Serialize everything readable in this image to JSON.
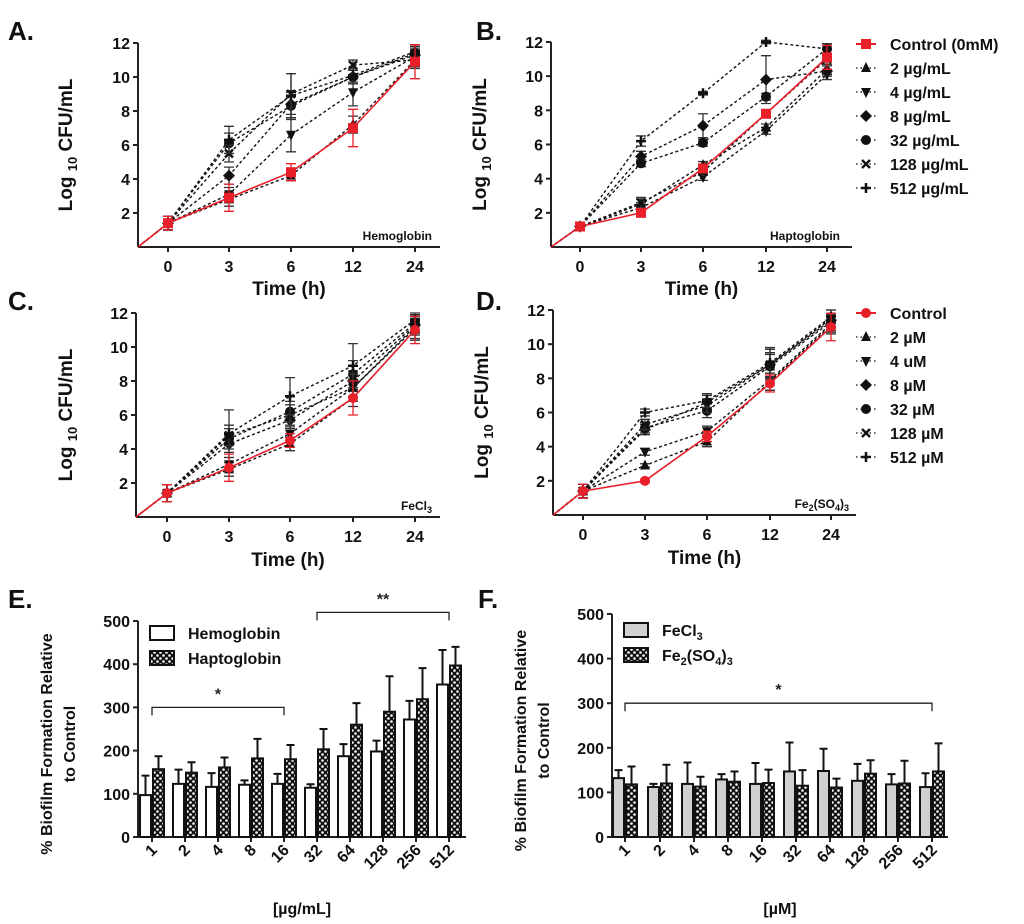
{
  "figure": {
    "panel_labels": [
      "A.",
      "B.",
      "C.",
      "D.",
      "E.",
      "F."
    ]
  },
  "chart_data": [
    {
      "id": "A",
      "type": "line",
      "annotation": "Hemoglobin",
      "xlabel": "Time  (h)",
      "ylabel_prefix": "Log",
      "ylabel_sub": "10",
      "ylabel_suffix": "CFU/mL",
      "x": [
        "0",
        "3",
        "6",
        "12",
        "24"
      ],
      "ylim": [
        0,
        12
      ],
      "yticks": [
        2,
        4,
        6,
        8,
        10,
        12
      ],
      "grid": false,
      "series": [
        {
          "name": "Control (0mM)",
          "marker": "square",
          "color": "#e8202a",
          "style": "solid",
          "values": [
            1.4,
            2.9,
            4.4,
            7.0,
            10.9
          ],
          "err": [
            0.4,
            0.8,
            0.5,
            1.1,
            1.0
          ]
        },
        {
          "name": "2 µg/mL",
          "marker": "triangle-up",
          "color": "#111111",
          "style": "dashed",
          "values": [
            1.4,
            2.8,
            4.2,
            7.2,
            11.0
          ],
          "err": [
            0.4,
            0.4,
            0.3,
            0.5,
            0.4
          ]
        },
        {
          "name": "4 µg/mL",
          "marker": "triangle-down",
          "color": "#111111",
          "style": "dashed",
          "values": [
            1.4,
            3.1,
            6.6,
            9.1,
            11.2
          ],
          "err": [
            0.4,
            0.4,
            1.0,
            0.8,
            0.4
          ]
        },
        {
          "name": "8 µg/mL",
          "marker": "diamond",
          "color": "#111111",
          "style": "dashed",
          "values": [
            1.4,
            4.2,
            8.4,
            10.0,
            11.3
          ],
          "err": [
            0.4,
            0.5,
            0.8,
            0.4,
            0.4
          ]
        },
        {
          "name": "32 µg/mL",
          "marker": "circle",
          "color": "#111111",
          "style": "dashed",
          "values": [
            1.4,
            6.1,
            8.3,
            10.0,
            11.4
          ],
          "err": [
            0.4,
            0.6,
            0.8,
            0.4,
            0.4
          ]
        },
        {
          "name": "128 µg/mL",
          "marker": "x",
          "color": "#111111",
          "style": "dashed",
          "values": [
            1.4,
            5.5,
            9.0,
            10.7,
            11.0
          ],
          "err": [
            0.4,
            0.5,
            1.2,
            0.3,
            0.5
          ]
        },
        {
          "name": "512 µg/mL",
          "marker": "plus",
          "color": "#111111",
          "style": "dashed",
          "values": [
            1.4,
            6.3,
            8.9,
            10.1,
            11.5
          ],
          "err": [
            0.4,
            0.8,
            1.3,
            0.4,
            0.4
          ]
        }
      ]
    },
    {
      "id": "B",
      "type": "line",
      "annotation": "Haptoglobin",
      "xlabel": "Time  (h)",
      "ylabel_prefix": "Log",
      "ylabel_sub": "10",
      "ylabel_suffix": "CFU/mL",
      "x": [
        "0",
        "3",
        "6",
        "12",
        "24"
      ],
      "ylim": [
        0,
        12
      ],
      "yticks": [
        2,
        4,
        6,
        8,
        10,
        12
      ],
      "grid": false,
      "legend": {
        "position": "right",
        "entries": [
          "Control (0mM)",
          "2 µg/mL",
          "4 µg/mL",
          "8 µg/mL",
          "32 µg/mL",
          "128 µg/mL",
          "512 µg/mL"
        ]
      },
      "series": [
        {
          "name": "Control (0mM)",
          "marker": "square",
          "color": "#e8202a",
          "style": "solid",
          "values": [
            1.2,
            2.0,
            4.6,
            7.8,
            11.1
          ],
          "err": [
            0.1,
            0.1,
            0.2,
            0.2,
            0.7
          ]
        },
        {
          "name": "2 µg/mL",
          "marker": "triangle-up",
          "color": "#111111",
          "style": "dashed",
          "values": [
            1.2,
            2.5,
            4.8,
            7.0,
            10.4
          ],
          "err": [
            0.1,
            0.3,
            0.2,
            0.2,
            0.3
          ]
        },
        {
          "name": "4 µg/mL",
          "marker": "triangle-down",
          "color": "#111111",
          "style": "dashed",
          "values": [
            1.2,
            2.3,
            4.1,
            6.8,
            10.1
          ],
          "err": [
            0.1,
            0.3,
            0.2,
            0.2,
            0.3
          ]
        },
        {
          "name": "8 µg/mL",
          "marker": "diamond",
          "color": "#111111",
          "style": "dashed",
          "values": [
            1.2,
            5.3,
            7.1,
            9.8,
            10.3
          ],
          "err": [
            0.1,
            0.3,
            0.7,
            1.4,
            0.3
          ]
        },
        {
          "name": "32 µg/mL",
          "marker": "circle",
          "color": "#111111",
          "style": "dashed",
          "values": [
            1.2,
            4.9,
            6.1,
            8.8,
            11.6
          ],
          "err": [
            0.1,
            0.2,
            0.2,
            0.2,
            0.3
          ]
        },
        {
          "name": "128 µg/mL",
          "marker": "x",
          "color": "#111111",
          "style": "dashed",
          "values": [
            1.2,
            2.6,
            4.4,
            7.8,
            11.0
          ],
          "err": [
            0.1,
            0.3,
            0.2,
            0.2,
            0.3
          ]
        },
        {
          "name": "512 µg/mL",
          "marker": "plus",
          "color": "#111111",
          "style": "dashed",
          "values": [
            1.2,
            6.2,
            9.0,
            12.0,
            11.6
          ],
          "err": [
            0.1,
            0.3,
            0.1,
            0.1,
            0.3
          ]
        }
      ]
    },
    {
      "id": "C",
      "type": "line",
      "annotation": "FeCl",
      "annotation_sub": "3",
      "xlabel": "Time  (h)",
      "ylabel_prefix": "Log",
      "ylabel_sub": "10",
      "ylabel_suffix": "CFU/mL",
      "x": [
        "0",
        "3",
        "6",
        "12",
        "24"
      ],
      "ylim": [
        0,
        12
      ],
      "yticks": [
        2,
        4,
        6,
        8,
        10,
        12
      ],
      "grid": false,
      "series": [
        {
          "name": "Control",
          "marker": "circle",
          "color": "#e8202a",
          "style": "solid",
          "values": [
            1.4,
            2.9,
            4.5,
            7.0,
            11.0
          ],
          "err": [
            0.5,
            0.8,
            0.4,
            1.0,
            0.8
          ]
        },
        {
          "name": "2 µM",
          "marker": "triangle-up",
          "color": "#111111",
          "style": "dashed",
          "values": [
            1.4,
            2.8,
            4.3,
            7.0,
            11.0
          ],
          "err": [
            0.5,
            0.4,
            0.4,
            0.5,
            0.5
          ]
        },
        {
          "name": "4 uM",
          "marker": "triangle-down",
          "color": "#111111",
          "style": "dashed",
          "values": [
            1.4,
            3.1,
            4.9,
            7.6,
            11.2
          ],
          "err": [
            0.5,
            0.4,
            0.4,
            0.5,
            0.5
          ]
        },
        {
          "name": "8 µM",
          "marker": "diamond",
          "color": "#111111",
          "style": "dashed",
          "values": [
            1.4,
            4.3,
            5.7,
            8.0,
            11.3
          ],
          "err": [
            0.5,
            0.5,
            0.5,
            0.6,
            0.5
          ]
        },
        {
          "name": "32 µM",
          "marker": "circle",
          "color": "#111111",
          "style": "dashed",
          "values": [
            1.4,
            4.6,
            6.2,
            8.4,
            11.4
          ],
          "err": [
            0.5,
            0.6,
            0.6,
            0.8,
            0.5
          ]
        },
        {
          "name": "128 µM",
          "marker": "x",
          "color": "#111111",
          "style": "dashed",
          "values": [
            1.4,
            4.8,
            6.0,
            7.6,
            11.1
          ],
          "err": [
            0.5,
            0.6,
            0.6,
            0.8,
            0.7
          ]
        },
        {
          "name": "512 µM",
          "marker": "plus",
          "color": "#111111",
          "style": "dashed",
          "values": [
            1.4,
            4.9,
            7.1,
            8.9,
            11.6
          ],
          "err": [
            0.5,
            1.4,
            1.1,
            1.3,
            0.4
          ]
        }
      ]
    },
    {
      "id": "D",
      "type": "line",
      "annotation": "Fe",
      "annotation_full": "Fe2(SO4)3",
      "xlabel": "Time  (h)",
      "ylabel_prefix": "Log",
      "ylabel_sub": "10",
      "ylabel_suffix": "CFU/mL",
      "x": [
        "0",
        "3",
        "6",
        "12",
        "24"
      ],
      "ylim": [
        0,
        12
      ],
      "yticks": [
        2,
        4,
        6,
        8,
        10,
        12
      ],
      "grid": false,
      "legend": {
        "position": "right",
        "entries": [
          "Control",
          "2 µM",
          "4 uM",
          "8 µM",
          "32 µM",
          "128 µM",
          "512 µM"
        ]
      },
      "series": [
        {
          "name": "Control",
          "marker": "circle",
          "color": "#e8202a",
          "style": "solid",
          "values": [
            1.4,
            2.0,
            4.6,
            7.7,
            11.0
          ],
          "err": [
            0.4,
            0.1,
            0.3,
            0.5,
            0.8
          ]
        },
        {
          "name": "2 µM",
          "marker": "triangle-up",
          "color": "#111111",
          "style": "dashed",
          "values": [
            1.4,
            2.9,
            4.3,
            7.8,
            11.1
          ],
          "err": [
            0.4,
            0.1,
            0.3,
            0.5,
            0.5
          ]
        },
        {
          "name": "4 uM",
          "marker": "triangle-down",
          "color": "#111111",
          "style": "dashed",
          "values": [
            1.4,
            3.7,
            4.9,
            7.9,
            11.2
          ],
          "err": [
            0.4,
            0.2,
            0.3,
            0.6,
            0.5
          ]
        },
        {
          "name": "8 µM",
          "marker": "diamond",
          "color": "#111111",
          "style": "dashed",
          "values": [
            1.4,
            5.0,
            6.6,
            8.8,
            11.4
          ],
          "err": [
            0.4,
            0.3,
            0.4,
            0.7,
            0.4
          ]
        },
        {
          "name": "32 µM",
          "marker": "circle",
          "color": "#111111",
          "style": "dashed",
          "values": [
            1.4,
            5.1,
            6.1,
            8.7,
            11.3
          ],
          "err": [
            0.4,
            0.3,
            0.4,
            0.7,
            0.5
          ]
        },
        {
          "name": "128 µM",
          "marker": "x",
          "color": "#111111",
          "style": "dashed",
          "values": [
            1.4,
            5.3,
            6.4,
            8.8,
            11.5
          ],
          "err": [
            0.4,
            0.3,
            0.4,
            0.9,
            0.5
          ]
        },
        {
          "name": "512 µM",
          "marker": "plus",
          "color": "#111111",
          "style": "dashed",
          "values": [
            1.4,
            6.0,
            6.7,
            8.9,
            11.6
          ],
          "err": [
            0.4,
            0.2,
            0.4,
            0.9,
            0.4
          ]
        }
      ]
    },
    {
      "id": "E",
      "type": "bar",
      "ylabel_line1": "% Biofilm Formation Relative",
      "ylabel_line2": "to Control",
      "xlabel": "[µg/mL]",
      "categories": [
        "1",
        "2",
        "4",
        "8",
        "16",
        "32",
        "64",
        "128",
        "256",
        "512"
      ],
      "ylim": [
        0,
        500
      ],
      "yticks": [
        0,
        100,
        200,
        300,
        400,
        500
      ],
      "grid": false,
      "legend": {
        "position": "top-left",
        "entries": [
          "Hemoglobin",
          "Haptoglobin"
        ]
      },
      "series": [
        {
          "name": "Hemoglobin",
          "fill": "white",
          "values": [
            97,
            123,
            116,
            121,
            123,
            114,
            187,
            198,
            272,
            353
          ],
          "err": [
            45,
            33,
            32,
            10,
            23,
            8,
            28,
            25,
            43,
            80
          ]
        },
        {
          "name": "Haptoglobin",
          "fill": "checker",
          "values": [
            157,
            149,
            161,
            182,
            180,
            203,
            260,
            290,
            319,
            397
          ],
          "err": [
            30,
            24,
            23,
            45,
            33,
            47,
            50,
            82,
            72,
            43
          ]
        }
      ],
      "significance": [
        {
          "label": "*",
          "from": "1",
          "to": "16",
          "level": 300
        },
        {
          "label": "**",
          "from": "32",
          "to": "512",
          "level": 520
        }
      ]
    },
    {
      "id": "F",
      "type": "bar",
      "ylabel_line1": "% Biofilm Formation Relative",
      "ylabel_line2": "to Control",
      "xlabel": "[µM]",
      "categories": [
        "1",
        "2",
        "4",
        "8",
        "16",
        "32",
        "64",
        "128",
        "256",
        "512"
      ],
      "ylim": [
        0,
        500
      ],
      "yticks": [
        0,
        100,
        200,
        300,
        400,
        500
      ],
      "grid": false,
      "legend": {
        "position": "top-left",
        "entries": [
          "FeCl3",
          "Fe2(SO4)3"
        ]
      },
      "series": [
        {
          "name": "FeCl3",
          "fill": "lightgray",
          "values": [
            132,
            112,
            119,
            129,
            119,
            147,
            148,
            126,
            118,
            112
          ],
          "err": [
            18,
            7,
            48,
            12,
            47,
            65,
            50,
            38,
            23,
            31
          ]
        },
        {
          "name": "Fe2(SO4)3",
          "fill": "checker",
          "values": [
            118,
            120,
            113,
            124,
            121,
            115,
            111,
            142,
            120,
            147
          ],
          "err": [
            40,
            42,
            22,
            23,
            30,
            35,
            20,
            30,
            51,
            63
          ]
        }
      ],
      "significance": [
        {
          "label": "*",
          "from": "1",
          "to": "512",
          "level": 300
        }
      ]
    }
  ]
}
